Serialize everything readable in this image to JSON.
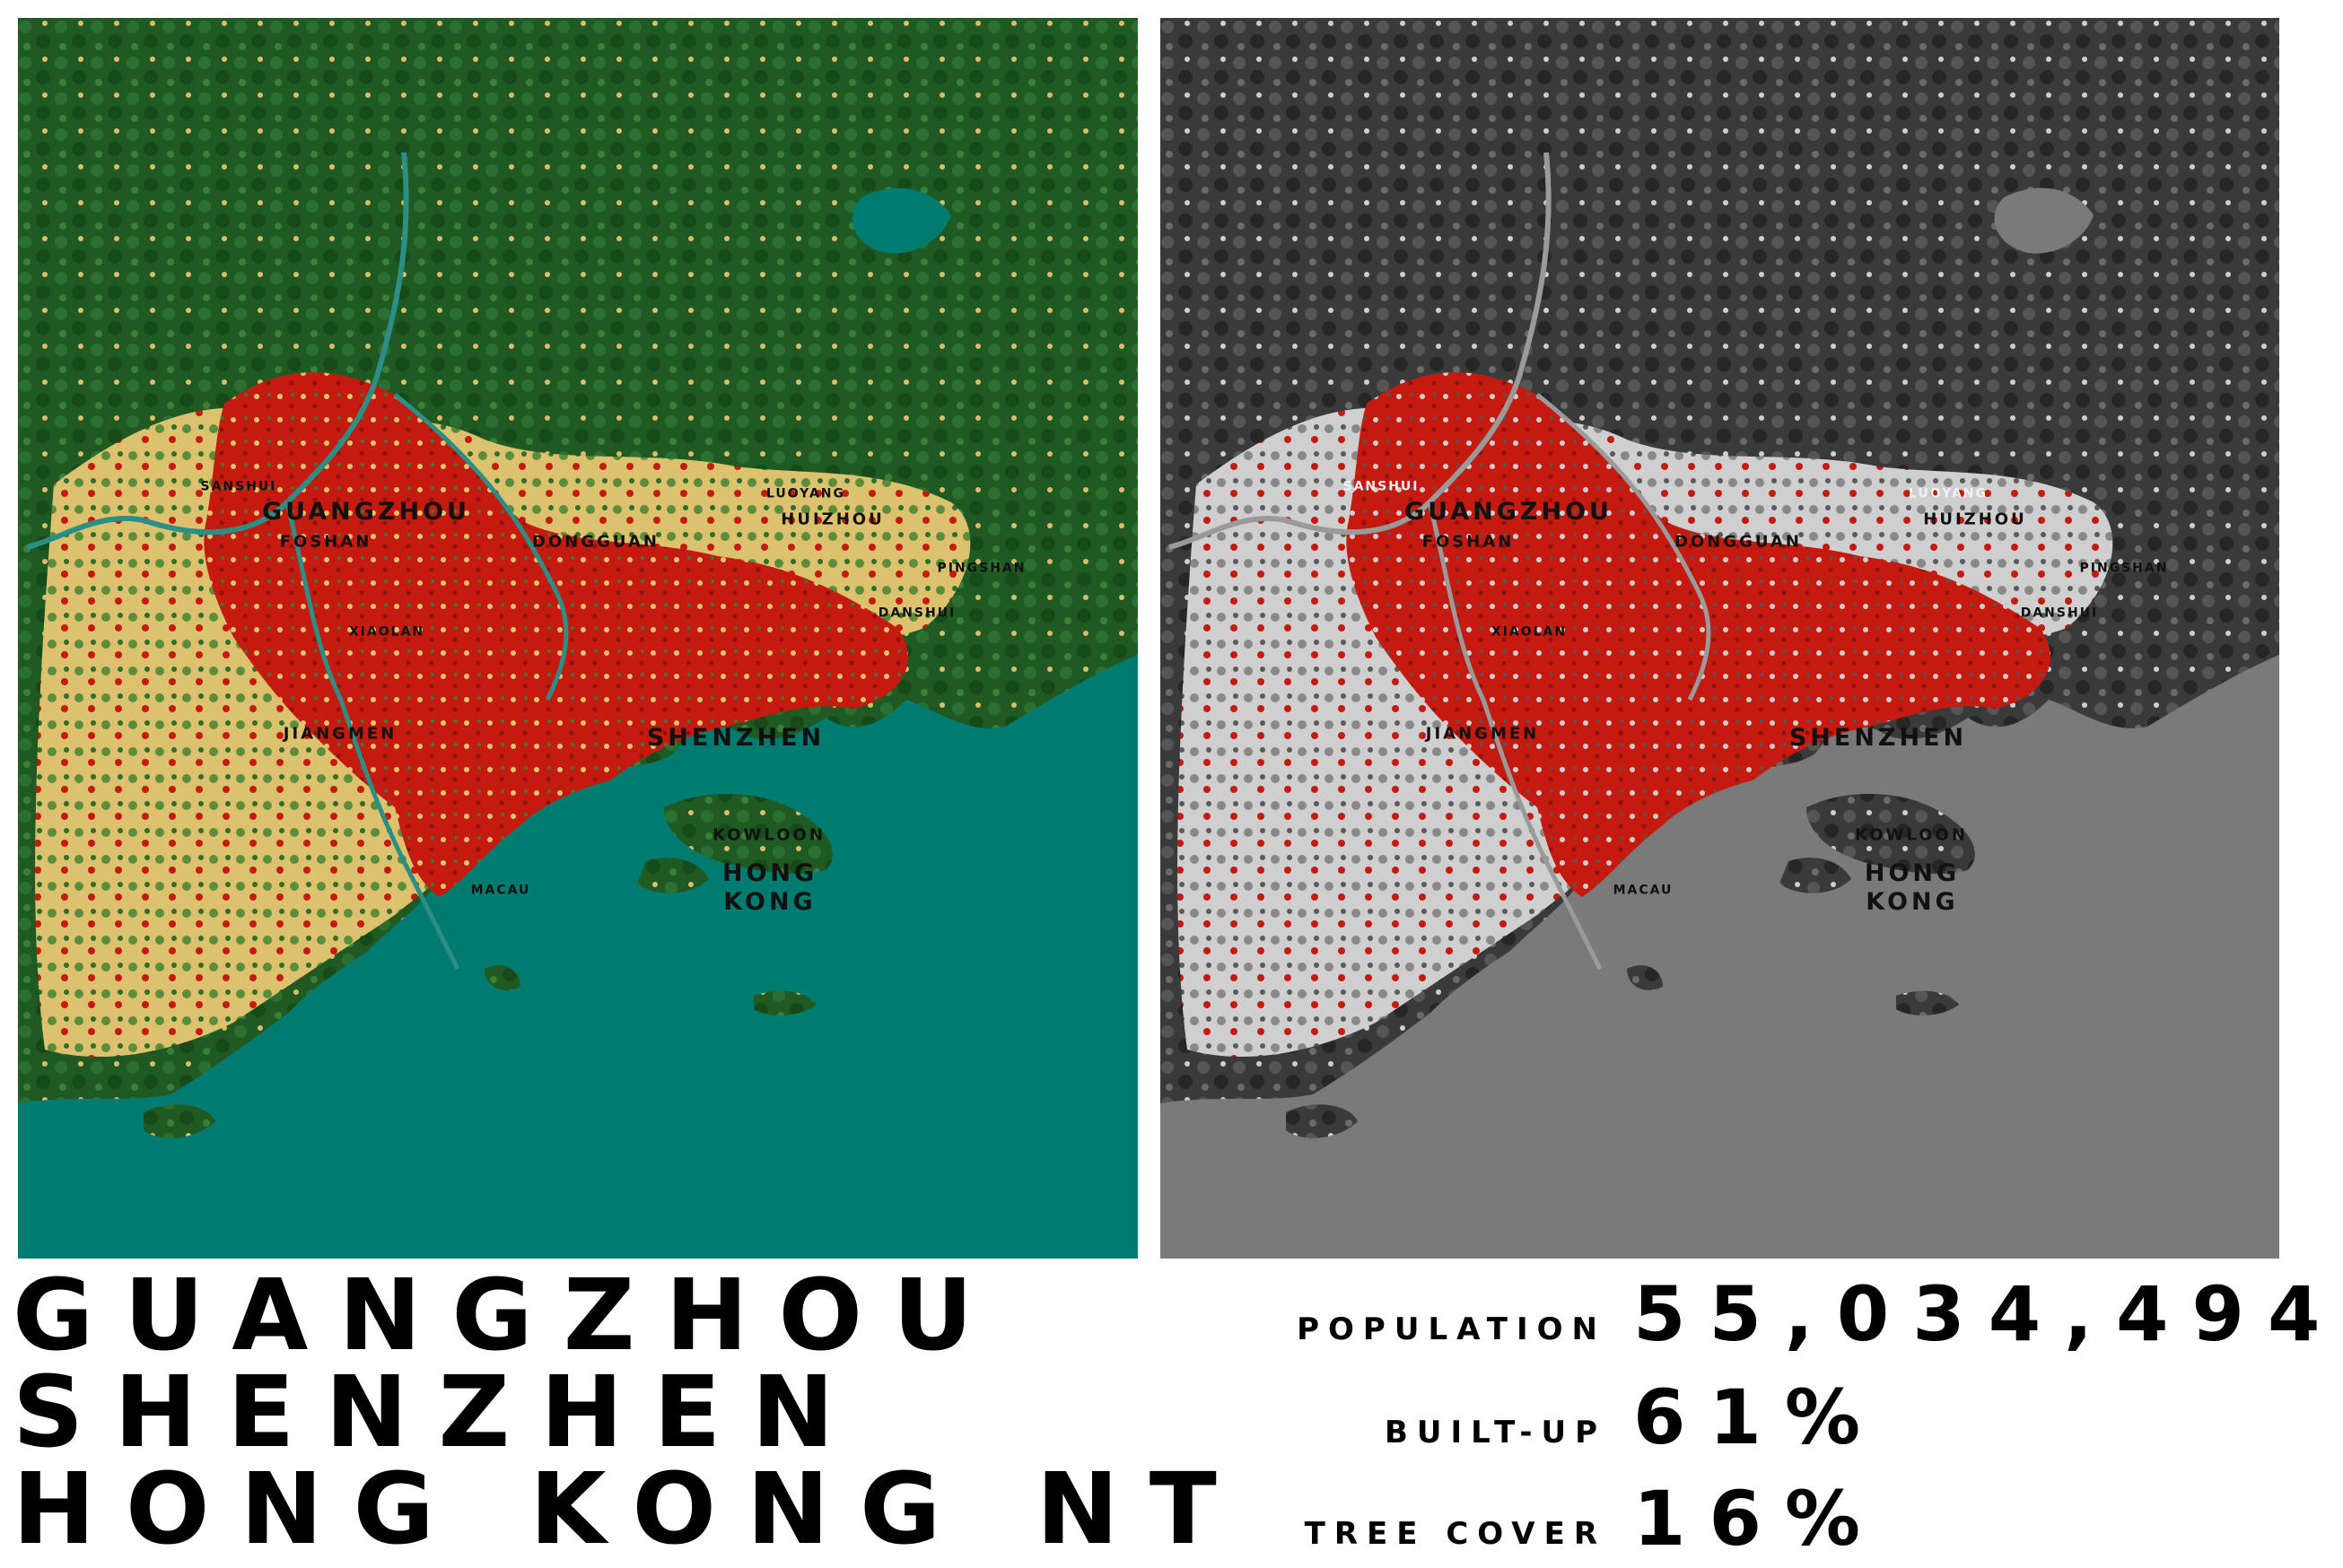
{
  "maps": {
    "left": {
      "style": "land-cover",
      "colors": {
        "water": "#007b70",
        "forest": "#1f5a22",
        "cropland": "#e6c873",
        "built_up": "#c41a10"
      }
    },
    "right": {
      "style": "grayscale-with-built-up",
      "colors": {
        "water": "#7a7a7a",
        "land": "#3c3c3c",
        "open": "#d8d8d8",
        "built_up": "#c41a10"
      }
    }
  },
  "labels": {
    "sanshui": "SANSHUI",
    "guangzhou": "GUANGZHOU",
    "foshan": "FOSHAN",
    "dongguan": "DONGGUAN",
    "luoyang": "LUOYANG",
    "huizhou": "HUIZHOU",
    "pingshan": "PINGSHAN",
    "danshui": "DANSHUI",
    "xiaolan": "XIAOLAN",
    "jiangmen": "JIANGMEN",
    "shenzhen": "SHENZHEN",
    "kowloon": "KOWLOON",
    "hong": "HONG",
    "kong": "KONG",
    "macau": "MACAU"
  },
  "title": {
    "line1": "GUANGZHOU",
    "line2": "SHENZHEN",
    "line3": "HONG KONG NT"
  },
  "stats": {
    "population_label": "POPULATION",
    "population_value": "55,034,494",
    "built_up_label": "BUILT-UP",
    "built_up_value": "61%",
    "tree_cover_label": "TREE COVER",
    "tree_cover_value": "16%"
  }
}
